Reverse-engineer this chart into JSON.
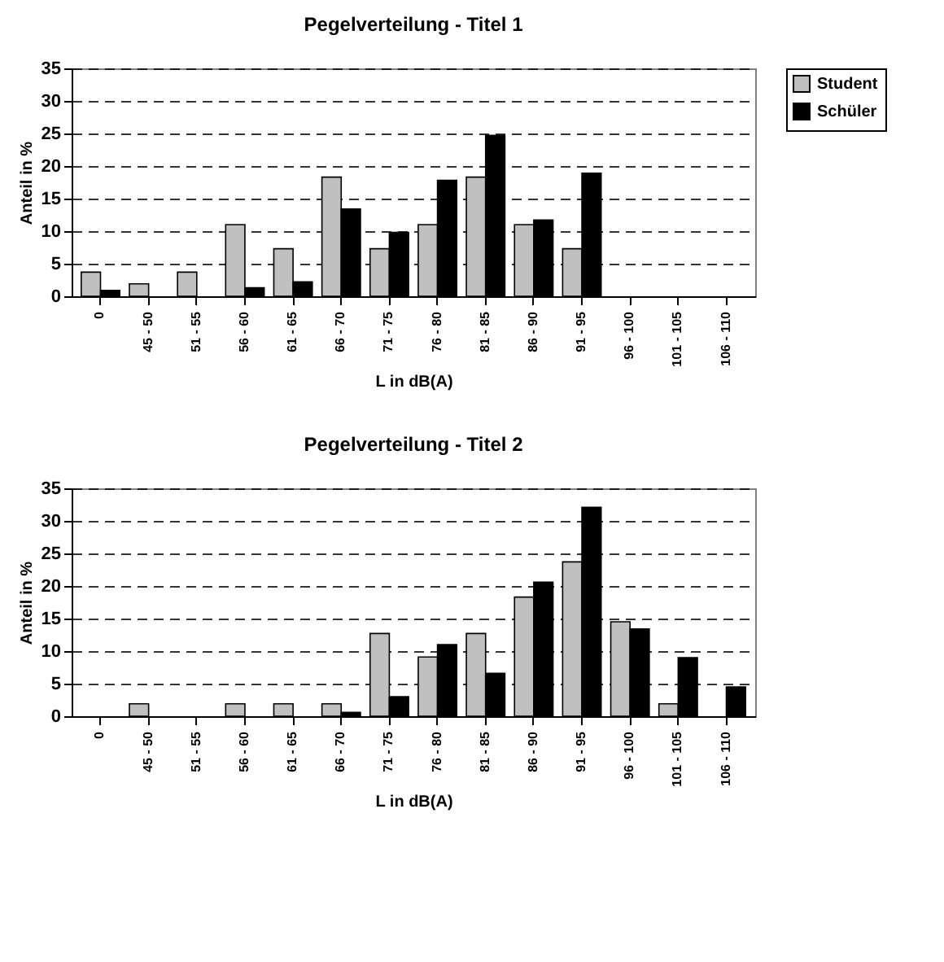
{
  "chart_data": [
    {
      "type": "bar",
      "title": "Pegelverteilung - Titel 1",
      "xlabel": "L in dB(A)",
      "ylabel": "Anteil in %",
      "categories": [
        "0",
        "45 - 50",
        "51 - 55",
        "56 - 60",
        "61 - 65",
        "66 - 70",
        "71 - 75",
        "76 - 80",
        "81 - 85",
        "86 - 90",
        "91 - 95",
        "96 - 100",
        "101 - 105",
        "106 - 110"
      ],
      "series": [
        {
          "name": "Student",
          "color": "#c0c0c0",
          "values": [
            3.7,
            1.9,
            3.7,
            11.0,
            7.3,
            18.3,
            7.3,
            11.0,
            18.3,
            11.0,
            7.3,
            0,
            0,
            0
          ]
        },
        {
          "name": "Schüler",
          "color": "#000000",
          "values": [
            0.9,
            0,
            0,
            1.3,
            2.2,
            13.4,
            9.8,
            17.8,
            24.7,
            11.7,
            18.9,
            0,
            0,
            0
          ]
        }
      ],
      "ylim": [
        0,
        35
      ],
      "yticks": [
        0,
        5,
        10,
        15,
        20,
        25,
        30,
        35
      ],
      "grid": "y",
      "legend": "right"
    },
    {
      "type": "bar",
      "title": "Pegelverteilung - Titel 2",
      "xlabel": "L in dB(A)",
      "ylabel": "Anteil in %",
      "categories": [
        "0",
        "45 - 50",
        "51 - 55",
        "56 - 60",
        "61 - 65",
        "66 - 70",
        "71 - 75",
        "76 - 80",
        "81 - 85",
        "86 - 90",
        "91 - 95",
        "96 - 100",
        "101 - 105",
        "106 - 110"
      ],
      "series": [
        {
          "name": "Student",
          "color": "#c0c0c0",
          "values": [
            0,
            1.9,
            0,
            1.9,
            1.9,
            1.9,
            12.7,
            9.1,
            12.7,
            18.3,
            23.7,
            14.5,
            1.9,
            0
          ]
        },
        {
          "name": "Schüler",
          "color": "#000000",
          "values": [
            0,
            0,
            0,
            0,
            0,
            0.6,
            3.0,
            11.0,
            6.6,
            20.6,
            32.1,
            13.4,
            9.0,
            4.5
          ]
        }
      ],
      "ylim": [
        0,
        35
      ],
      "yticks": [
        0,
        5,
        10,
        15,
        20,
        25,
        30,
        35
      ],
      "grid": "y",
      "legend": "right"
    }
  ]
}
